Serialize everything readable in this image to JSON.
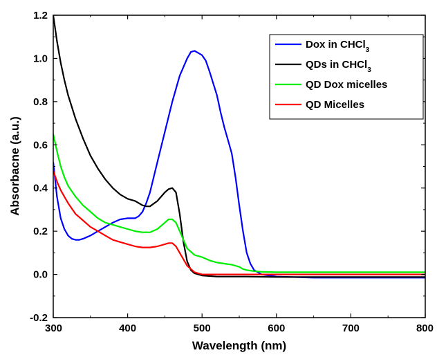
{
  "chart_data": {
    "type": "line",
    "title": "",
    "xlabel": "Wavelength (nm)",
    "ylabel": "Absorbacne (a.u.)",
    "xlim": [
      300,
      800
    ],
    "ylim": [
      -0.2,
      1.2
    ],
    "x_ticks": [
      300,
      400,
      500,
      600,
      700,
      800
    ],
    "y_ticks": [
      -0.2,
      0.0,
      0.2,
      0.4,
      0.6,
      0.8,
      1.0,
      1.2
    ],
    "x_tick_labels": [
      "300",
      "400",
      "500",
      "600",
      "700",
      "800"
    ],
    "y_tick_labels": [
      "-0.2",
      "0.0",
      "0.2",
      "0.4",
      "0.6",
      "0.8",
      "1.0",
      "1.2"
    ],
    "grid": false,
    "legend_position": "top-right",
    "series": [
      {
        "name": "Dox in CHCl3",
        "legend_main": "Dox in CHCl",
        "legend_sub": "3",
        "color": "#0000ff",
        "points": [
          [
            300,
            0.52
          ],
          [
            305,
            0.36
          ],
          [
            310,
            0.26
          ],
          [
            315,
            0.21
          ],
          [
            320,
            0.18
          ],
          [
            325,
            0.165
          ],
          [
            330,
            0.16
          ],
          [
            335,
            0.16
          ],
          [
            340,
            0.165
          ],
          [
            350,
            0.18
          ],
          [
            360,
            0.2
          ],
          [
            370,
            0.22
          ],
          [
            380,
            0.24
          ],
          [
            390,
            0.255
          ],
          [
            400,
            0.26
          ],
          [
            410,
            0.26
          ],
          [
            415,
            0.27
          ],
          [
            420,
            0.29
          ],
          [
            425,
            0.33
          ],
          [
            430,
            0.38
          ],
          [
            440,
            0.52
          ],
          [
            450,
            0.66
          ],
          [
            460,
            0.8
          ],
          [
            470,
            0.92
          ],
          [
            480,
            1.0
          ],
          [
            485,
            1.03
          ],
          [
            490,
            1.035
          ],
          [
            495,
            1.025
          ],
          [
            500,
            1.015
          ],
          [
            505,
            0.99
          ],
          [
            510,
            0.94
          ],
          [
            520,
            0.83
          ],
          [
            525,
            0.75
          ],
          [
            530,
            0.68
          ],
          [
            535,
            0.62
          ],
          [
            540,
            0.56
          ],
          [
            545,
            0.45
          ],
          [
            550,
            0.32
          ],
          [
            555,
            0.2
          ],
          [
            560,
            0.1
          ],
          [
            565,
            0.05
          ],
          [
            570,
            0.02
          ],
          [
            575,
            0.01
          ],
          [
            580,
            0.0
          ],
          [
            590,
            -0.005
          ],
          [
            600,
            -0.01
          ],
          [
            650,
            -0.015
          ],
          [
            700,
            -0.015
          ],
          [
            750,
            -0.015
          ],
          [
            800,
            -0.015
          ]
        ]
      },
      {
        "name": "QDs in CHCl3",
        "legend_main": "QDs in CHCl",
        "legend_sub": "3",
        "color": "#000000",
        "points": [
          [
            300,
            1.2
          ],
          [
            305,
            1.08
          ],
          [
            310,
            0.98
          ],
          [
            315,
            0.9
          ],
          [
            320,
            0.83
          ],
          [
            330,
            0.72
          ],
          [
            340,
            0.63
          ],
          [
            350,
            0.55
          ],
          [
            360,
            0.49
          ],
          [
            370,
            0.44
          ],
          [
            380,
            0.4
          ],
          [
            390,
            0.37
          ],
          [
            400,
            0.35
          ],
          [
            410,
            0.34
          ],
          [
            420,
            0.32
          ],
          [
            425,
            0.315
          ],
          [
            430,
            0.315
          ],
          [
            440,
            0.34
          ],
          [
            450,
            0.38
          ],
          [
            455,
            0.395
          ],
          [
            460,
            0.4
          ],
          [
            465,
            0.38
          ],
          [
            470,
            0.28
          ],
          [
            475,
            0.15
          ],
          [
            480,
            0.06
          ],
          [
            485,
            0.02
          ],
          [
            490,
            0.005
          ],
          [
            500,
            -0.005
          ],
          [
            520,
            -0.01
          ],
          [
            560,
            -0.01
          ],
          [
            600,
            -0.012
          ],
          [
            650,
            -0.012
          ],
          [
            700,
            -0.012
          ],
          [
            750,
            -0.012
          ],
          [
            800,
            -0.012
          ]
        ]
      },
      {
        "name": "QD Dox micelles",
        "legend_main": "QD Dox micelles",
        "legend_sub": "",
        "color": "#00ee00",
        "points": [
          [
            300,
            0.65
          ],
          [
            305,
            0.57
          ],
          [
            310,
            0.5
          ],
          [
            315,
            0.45
          ],
          [
            320,
            0.41
          ],
          [
            330,
            0.36
          ],
          [
            340,
            0.32
          ],
          [
            350,
            0.29
          ],
          [
            360,
            0.26
          ],
          [
            370,
            0.24
          ],
          [
            380,
            0.23
          ],
          [
            390,
            0.22
          ],
          [
            400,
            0.21
          ],
          [
            410,
            0.2
          ],
          [
            420,
            0.195
          ],
          [
            430,
            0.195
          ],
          [
            440,
            0.21
          ],
          [
            450,
            0.24
          ],
          [
            455,
            0.255
          ],
          [
            460,
            0.255
          ],
          [
            465,
            0.24
          ],
          [
            470,
            0.2
          ],
          [
            475,
            0.16
          ],
          [
            480,
            0.12
          ],
          [
            490,
            0.09
          ],
          [
            500,
            0.08
          ],
          [
            510,
            0.065
          ],
          [
            520,
            0.055
          ],
          [
            530,
            0.05
          ],
          [
            540,
            0.045
          ],
          [
            550,
            0.035
          ],
          [
            555,
            0.025
          ],
          [
            560,
            0.02
          ],
          [
            570,
            0.015
          ],
          [
            580,
            0.012
          ],
          [
            600,
            0.01
          ],
          [
            650,
            0.01
          ],
          [
            700,
            0.01
          ],
          [
            750,
            0.01
          ],
          [
            800,
            0.01
          ]
        ]
      },
      {
        "name": "QD Micelles",
        "legend_main": "QD Micelles",
        "legend_sub": "",
        "color": "#ff0000",
        "points": [
          [
            300,
            0.48
          ],
          [
            305,
            0.43
          ],
          [
            310,
            0.39
          ],
          [
            315,
            0.36
          ],
          [
            320,
            0.33
          ],
          [
            330,
            0.28
          ],
          [
            340,
            0.25
          ],
          [
            350,
            0.22
          ],
          [
            360,
            0.2
          ],
          [
            370,
            0.18
          ],
          [
            380,
            0.16
          ],
          [
            390,
            0.15
          ],
          [
            400,
            0.14
          ],
          [
            410,
            0.13
          ],
          [
            420,
            0.125
          ],
          [
            430,
            0.125
          ],
          [
            440,
            0.13
          ],
          [
            450,
            0.14
          ],
          [
            455,
            0.145
          ],
          [
            460,
            0.145
          ],
          [
            465,
            0.13
          ],
          [
            470,
            0.1
          ],
          [
            475,
            0.07
          ],
          [
            480,
            0.04
          ],
          [
            490,
            0.01
          ],
          [
            500,
            0.0
          ],
          [
            520,
            0.0
          ],
          [
            560,
            0.0
          ],
          [
            600,
            0.0
          ],
          [
            650,
            0.0
          ],
          [
            700,
            0.0
          ],
          [
            750,
            0.0
          ],
          [
            800,
            0.0
          ]
        ]
      }
    ]
  }
}
